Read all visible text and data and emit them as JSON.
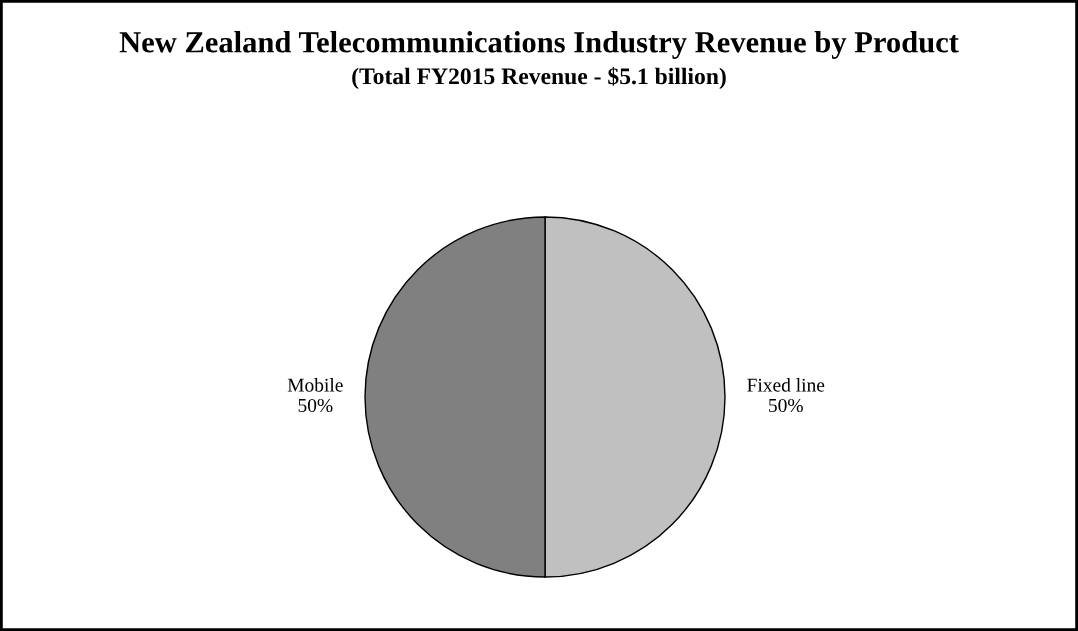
{
  "chart_data": {
    "type": "pie",
    "title": "New Zealand Telecommunications Industry Revenue by Product",
    "subtitle": "(Total FY2015 Revenue - $5.1 billion)",
    "categories": [
      "Fixed line",
      "Mobile"
    ],
    "values": [
      50,
      50
    ],
    "colors": [
      "#c0c0c0",
      "#808080"
    ],
    "value_labels": [
      "50%",
      "50%"
    ],
    "legend": false
  }
}
